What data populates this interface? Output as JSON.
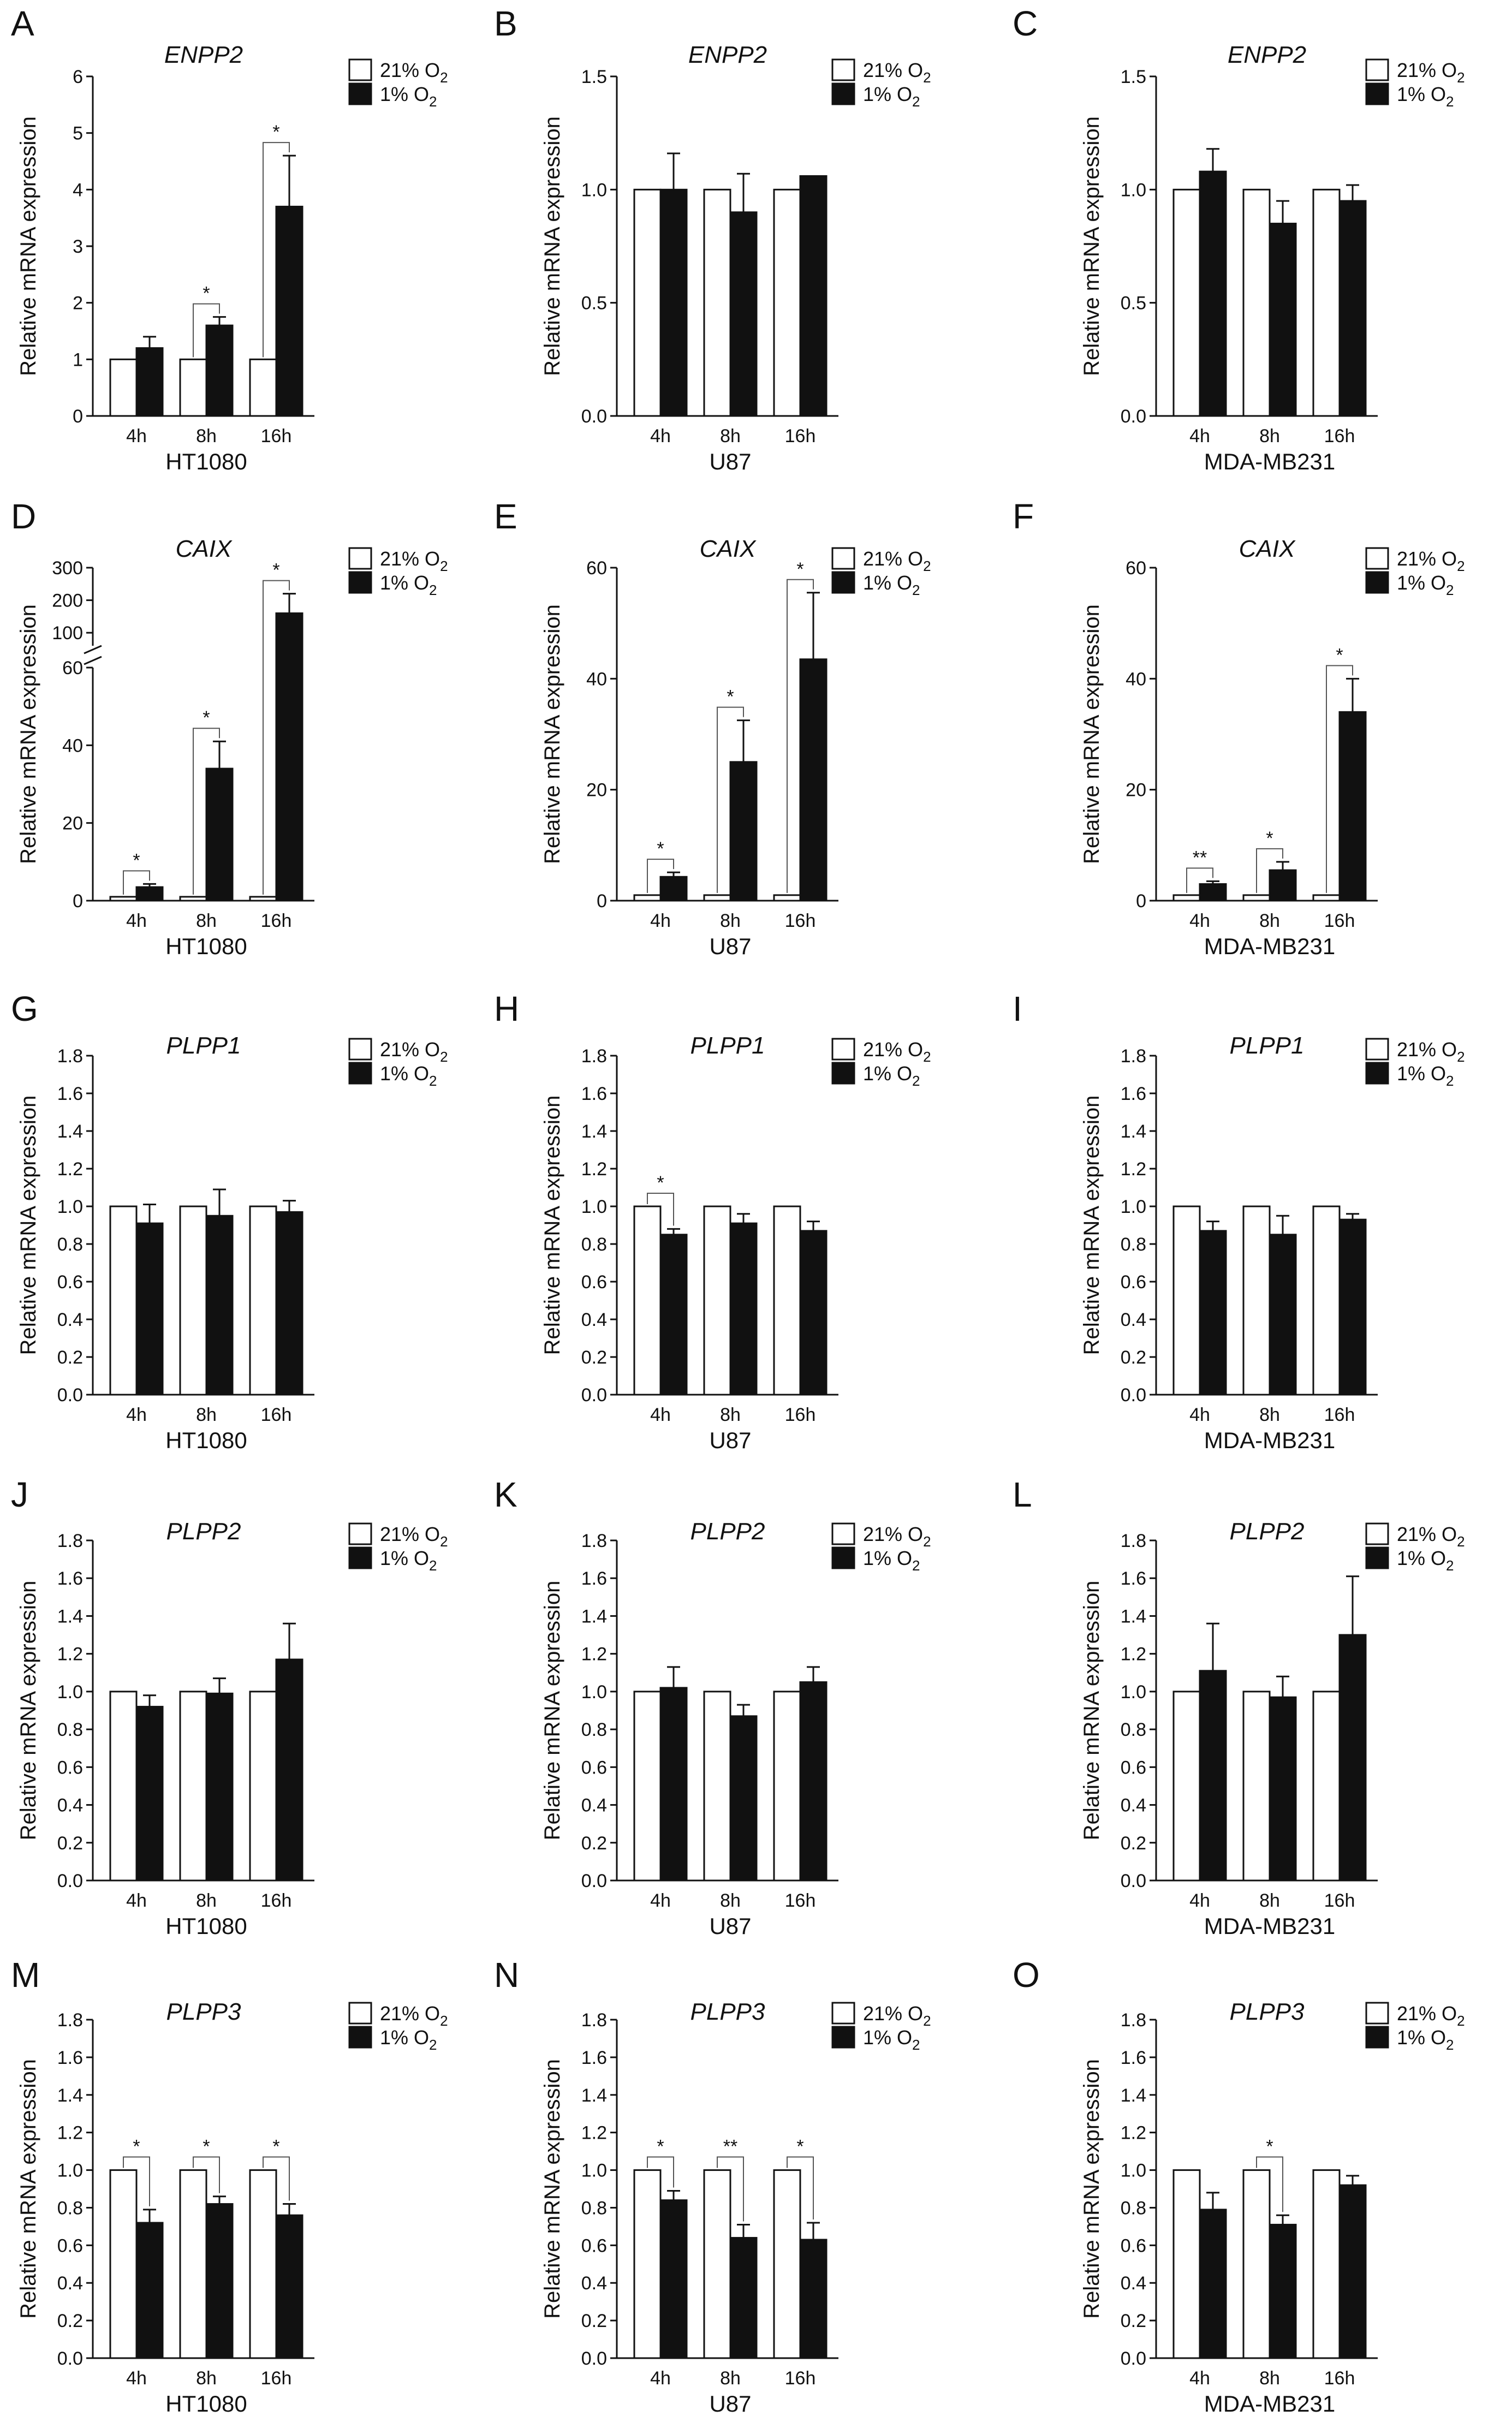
{
  "y_axis_label": "Relative mRNA expression",
  "legend": {
    "normoxia": {
      "main": "21% O",
      "sub": "2"
    },
    "hypoxia": {
      "main": "1% O",
      "sub": "2"
    }
  },
  "colors": {
    "normoxia_fill": "#ffffff",
    "hypoxia_fill": "#111111",
    "axis": "#111111"
  },
  "chart_data": [
    {
      "type": "bar",
      "panel": "A",
      "title": "ENPP2",
      "xlabel": "HT1080",
      "ylabel": "Relative mRNA expression",
      "categories": [
        "4h",
        "8h",
        "16h"
      ],
      "ylim": [
        0,
        6
      ],
      "yticks": [
        0,
        1,
        2,
        3,
        4,
        5,
        6
      ],
      "tick_labels": [
        "0",
        "1",
        "2",
        "3",
        "4",
        "5",
        "6"
      ],
      "series": [
        {
          "name": "21% O2",
          "values": [
            1,
            1,
            1
          ],
          "errors": [
            0,
            0,
            0
          ]
        },
        {
          "name": "1% O2",
          "values": [
            1.2,
            1.6,
            3.7
          ],
          "errors": [
            0.2,
            0.15,
            0.9
          ]
        }
      ],
      "significance": [
        "",
        "*",
        "*"
      ]
    },
    {
      "type": "bar",
      "panel": "B",
      "title": "ENPP2",
      "xlabel": "U87",
      "ylabel": "Relative mRNA expression",
      "categories": [
        "4h",
        "8h",
        "16h"
      ],
      "ylim": [
        0,
        1.5
      ],
      "yticks": [
        0,
        0.5,
        1.0,
        1.5
      ],
      "tick_labels": [
        "0.0",
        "0.5",
        "1.0",
        "1.5"
      ],
      "series": [
        {
          "name": "21% O2",
          "values": [
            1,
            1,
            1
          ],
          "errors": [
            0,
            0,
            0
          ]
        },
        {
          "name": "1% O2",
          "values": [
            1.0,
            0.9,
            1.06
          ],
          "errors": [
            0.16,
            0.17,
            0.0
          ]
        }
      ],
      "significance": [
        "",
        "",
        ""
      ]
    },
    {
      "type": "bar",
      "panel": "C",
      "title": "ENPP2",
      "xlabel": "MDA-MB231",
      "ylabel": "Relative mRNA expression",
      "categories": [
        "4h",
        "8h",
        "16h"
      ],
      "ylim": [
        0,
        1.5
      ],
      "yticks": [
        0,
        0.5,
        1.0,
        1.5
      ],
      "tick_labels": [
        "0.0",
        "0.5",
        "1.0",
        "1.5"
      ],
      "series": [
        {
          "name": "21% O2",
          "values": [
            1,
            1,
            1
          ],
          "errors": [
            0,
            0,
            0
          ]
        },
        {
          "name": "1% O2",
          "values": [
            1.08,
            0.85,
            0.95
          ],
          "errors": [
            0.1,
            0.1,
            0.07
          ]
        }
      ],
      "significance": [
        "",
        "",
        ""
      ]
    },
    {
      "type": "bar",
      "panel": "D",
      "title": "CAIX",
      "xlabel": "HT1080",
      "ylabel": "Relative mRNA expression",
      "categories": [
        "4h",
        "8h",
        "16h"
      ],
      "ylim": [
        0,
        60
      ],
      "yticks": [
        0,
        20,
        40,
        60
      ],
      "tick_labels": [
        "0",
        "20",
        "40",
        "60"
      ],
      "axis_break": {
        "upper_ticks": [
          100,
          200,
          300
        ],
        "upper_labels": [
          "100",
          "200",
          "300"
        ]
      },
      "series": [
        {
          "name": "21% O2",
          "values": [
            1,
            1,
            1
          ],
          "errors": [
            0,
            0,
            0
          ]
        },
        {
          "name": "1% O2",
          "values": [
            3.5,
            34,
            160
          ],
          "errors": [
            0.8,
            7,
            60
          ]
        }
      ],
      "significance": [
        "*",
        "*",
        "*"
      ]
    },
    {
      "type": "bar",
      "panel": "E",
      "title": "CAIX",
      "xlabel": "U87",
      "ylabel": "Relative mRNA expression",
      "categories": [
        "4h",
        "8h",
        "16h"
      ],
      "ylim": [
        0,
        60
      ],
      "yticks": [
        0,
        20,
        40,
        60
      ],
      "tick_labels": [
        "0",
        "20",
        "40",
        "60"
      ],
      "series": [
        {
          "name": "21% O2",
          "values": [
            1,
            1,
            1
          ],
          "errors": [
            0,
            0,
            0
          ]
        },
        {
          "name": "1% O2",
          "values": [
            4.3,
            25,
            43.5
          ],
          "errors": [
            0.8,
            7.5,
            12
          ]
        }
      ],
      "significance": [
        "*",
        "*",
        "*"
      ]
    },
    {
      "type": "bar",
      "panel": "F",
      "title": "CAIX",
      "xlabel": "MDA-MB231",
      "ylabel": "Relative mRNA expression",
      "categories": [
        "4h",
        "8h",
        "16h"
      ],
      "ylim": [
        0,
        60
      ],
      "yticks": [
        0,
        20,
        40,
        60
      ],
      "tick_labels": [
        "0",
        "20",
        "40",
        "60"
      ],
      "series": [
        {
          "name": "21% O2",
          "values": [
            1,
            1,
            1
          ],
          "errors": [
            0,
            0,
            0
          ]
        },
        {
          "name": "1% O2",
          "values": [
            3,
            5.5,
            34
          ],
          "errors": [
            0.5,
            1.5,
            6
          ]
        }
      ],
      "significance": [
        "**",
        "*",
        "*"
      ]
    },
    {
      "type": "bar",
      "panel": "G",
      "title": "PLPP1",
      "xlabel": "HT1080",
      "ylabel": "Relative mRNA expression",
      "categories": [
        "4h",
        "8h",
        "16h"
      ],
      "ylim": [
        0,
        1.8
      ],
      "yticks": [
        0,
        0.2,
        0.4,
        0.6,
        0.8,
        1.0,
        1.2,
        1.4,
        1.6,
        1.8
      ],
      "tick_labels": [
        "0.0",
        "0.2",
        "0.4",
        "0.6",
        "0.8",
        "1.0",
        "1.2",
        "1.4",
        "1.6",
        "1.8"
      ],
      "series": [
        {
          "name": "21% O2",
          "values": [
            1,
            1,
            1
          ],
          "errors": [
            0,
            0,
            0
          ]
        },
        {
          "name": "1% O2",
          "values": [
            0.91,
            0.95,
            0.97
          ],
          "errors": [
            0.1,
            0.14,
            0.06
          ]
        }
      ],
      "significance": [
        "",
        "",
        ""
      ]
    },
    {
      "type": "bar",
      "panel": "H",
      "title": "PLPP1",
      "xlabel": "U87",
      "ylabel": "Relative mRNA expression",
      "categories": [
        "4h",
        "8h",
        "16h"
      ],
      "ylim": [
        0,
        1.8
      ],
      "yticks": [
        0,
        0.2,
        0.4,
        0.6,
        0.8,
        1.0,
        1.2,
        1.4,
        1.6,
        1.8
      ],
      "tick_labels": [
        "0.0",
        "0.2",
        "0.4",
        "0.6",
        "0.8",
        "1.0",
        "1.2",
        "1.4",
        "1.6",
        "1.8"
      ],
      "series": [
        {
          "name": "21% O2",
          "values": [
            1,
            1,
            1
          ],
          "errors": [
            0,
            0,
            0
          ]
        },
        {
          "name": "1% O2",
          "values": [
            0.85,
            0.91,
            0.87
          ],
          "errors": [
            0.03,
            0.05,
            0.05
          ]
        }
      ],
      "significance": [
        "*",
        "",
        ""
      ]
    },
    {
      "type": "bar",
      "panel": "I",
      "title": "PLPP1",
      "xlabel": "MDA-MB231",
      "ylabel": "Relative mRNA expression",
      "categories": [
        "4h",
        "8h",
        "16h"
      ],
      "ylim": [
        0,
        1.8
      ],
      "yticks": [
        0,
        0.2,
        0.4,
        0.6,
        0.8,
        1.0,
        1.2,
        1.4,
        1.6,
        1.8
      ],
      "tick_labels": [
        "0.0",
        "0.2",
        "0.4",
        "0.6",
        "0.8",
        "1.0",
        "1.2",
        "1.4",
        "1.6",
        "1.8"
      ],
      "series": [
        {
          "name": "21% O2",
          "values": [
            1,
            1,
            1
          ],
          "errors": [
            0,
            0,
            0
          ]
        },
        {
          "name": "1% O2",
          "values": [
            0.87,
            0.85,
            0.93
          ],
          "errors": [
            0.05,
            0.1,
            0.03
          ]
        }
      ],
      "significance": [
        "",
        "",
        ""
      ]
    },
    {
      "type": "bar",
      "panel": "J",
      "title": "PLPP2",
      "xlabel": "HT1080",
      "ylabel": "Relative mRNA expression",
      "categories": [
        "4h",
        "8h",
        "16h"
      ],
      "ylim": [
        0,
        1.8
      ],
      "yticks": [
        0,
        0.2,
        0.4,
        0.6,
        0.8,
        1.0,
        1.2,
        1.4,
        1.6,
        1.8
      ],
      "tick_labels": [
        "0.0",
        "0.2",
        "0.4",
        "0.6",
        "0.8",
        "1.0",
        "1.2",
        "1.4",
        "1.6",
        "1.8"
      ],
      "series": [
        {
          "name": "21% O2",
          "values": [
            1,
            1,
            1
          ],
          "errors": [
            0,
            0,
            0
          ]
        },
        {
          "name": "1% O2",
          "values": [
            0.92,
            0.99,
            1.17
          ],
          "errors": [
            0.06,
            0.08,
            0.19
          ]
        }
      ],
      "significance": [
        "",
        "",
        ""
      ]
    },
    {
      "type": "bar",
      "panel": "K",
      "title": "PLPP2",
      "xlabel": "U87",
      "ylabel": "Relative mRNA expression",
      "categories": [
        "4h",
        "8h",
        "16h"
      ],
      "ylim": [
        0,
        1.8
      ],
      "yticks": [
        0,
        0.2,
        0.4,
        0.6,
        0.8,
        1.0,
        1.2,
        1.4,
        1.6,
        1.8
      ],
      "tick_labels": [
        "0.0",
        "0.2",
        "0.4",
        "0.6",
        "0.8",
        "1.0",
        "1.2",
        "1.4",
        "1.6",
        "1.8"
      ],
      "series": [
        {
          "name": "21% O2",
          "values": [
            1,
            1,
            1
          ],
          "errors": [
            0,
            0,
            0
          ]
        },
        {
          "name": "1% O2",
          "values": [
            1.02,
            0.87,
            1.05
          ],
          "errors": [
            0.11,
            0.06,
            0.08
          ]
        }
      ],
      "significance": [
        "",
        "",
        ""
      ]
    },
    {
      "type": "bar",
      "panel": "L",
      "title": "PLPP2",
      "xlabel": "MDA-MB231",
      "ylabel": "Relative mRNA expression",
      "categories": [
        "4h",
        "8h",
        "16h"
      ],
      "ylim": [
        0,
        1.8
      ],
      "yticks": [
        0,
        0.2,
        0.4,
        0.6,
        0.8,
        1.0,
        1.2,
        1.4,
        1.6,
        1.8
      ],
      "tick_labels": [
        "0.0",
        "0.2",
        "0.4",
        "0.6",
        "0.8",
        "1.0",
        "1.2",
        "1.4",
        "1.6",
        "1.8"
      ],
      "series": [
        {
          "name": "21% O2",
          "values": [
            1,
            1,
            1
          ],
          "errors": [
            0,
            0,
            0
          ]
        },
        {
          "name": "1% O2",
          "values": [
            1.11,
            0.97,
            1.3
          ],
          "errors": [
            0.25,
            0.11,
            0.31
          ]
        }
      ],
      "significance": [
        "",
        "",
        ""
      ]
    },
    {
      "type": "bar",
      "panel": "M",
      "title": "PLPP3",
      "xlabel": "HT1080",
      "ylabel": "Relative mRNA expression",
      "categories": [
        "4h",
        "8h",
        "16h"
      ],
      "ylim": [
        0,
        1.8
      ],
      "yticks": [
        0,
        0.2,
        0.4,
        0.6,
        0.8,
        1.0,
        1.2,
        1.4,
        1.6,
        1.8
      ],
      "tick_labels": [
        "0.0",
        "0.2",
        "0.4",
        "0.6",
        "0.8",
        "1.0",
        "1.2",
        "1.4",
        "1.6",
        "1.8"
      ],
      "series": [
        {
          "name": "21% O2",
          "values": [
            1,
            1,
            1
          ],
          "errors": [
            0,
            0,
            0
          ]
        },
        {
          "name": "1% O2",
          "values": [
            0.72,
            0.82,
            0.76
          ],
          "errors": [
            0.07,
            0.04,
            0.06
          ]
        }
      ],
      "significance": [
        "*",
        "*",
        "*"
      ]
    },
    {
      "type": "bar",
      "panel": "N",
      "title": "PLPP3",
      "xlabel": "U87",
      "ylabel": "Relative mRNA expression",
      "categories": [
        "4h",
        "8h",
        "16h"
      ],
      "ylim": [
        0,
        1.8
      ],
      "yticks": [
        0,
        0.2,
        0.4,
        0.6,
        0.8,
        1.0,
        1.2,
        1.4,
        1.6,
        1.8
      ],
      "tick_labels": [
        "0.0",
        "0.2",
        "0.4",
        "0.6",
        "0.8",
        "1.0",
        "1.2",
        "1.4",
        "1.6",
        "1.8"
      ],
      "series": [
        {
          "name": "21% O2",
          "values": [
            1,
            1,
            1
          ],
          "errors": [
            0,
            0,
            0
          ]
        },
        {
          "name": "1% O2",
          "values": [
            0.84,
            0.64,
            0.63
          ],
          "errors": [
            0.05,
            0.07,
            0.09
          ]
        }
      ],
      "significance": [
        "*",
        "**",
        "*"
      ]
    },
    {
      "type": "bar",
      "panel": "O",
      "title": "PLPP3",
      "xlabel": "MDA-MB231",
      "ylabel": "Relative mRNA expression",
      "categories": [
        "4h",
        "8h",
        "16h"
      ],
      "ylim": [
        0,
        1.8
      ],
      "yticks": [
        0,
        0.2,
        0.4,
        0.6,
        0.8,
        1.0,
        1.2,
        1.4,
        1.6,
        1.8
      ],
      "tick_labels": [
        "0.0",
        "0.2",
        "0.4",
        "0.6",
        "0.8",
        "1.0",
        "1.2",
        "1.4",
        "1.6",
        "1.8"
      ],
      "series": [
        {
          "name": "21% O2",
          "values": [
            1,
            1,
            1
          ],
          "errors": [
            0,
            0,
            0
          ]
        },
        {
          "name": "1% O2",
          "values": [
            0.79,
            0.71,
            0.92
          ],
          "errors": [
            0.09,
            0.05,
            0.05
          ]
        }
      ],
      "significance": [
        "",
        "*",
        ""
      ]
    }
  ]
}
